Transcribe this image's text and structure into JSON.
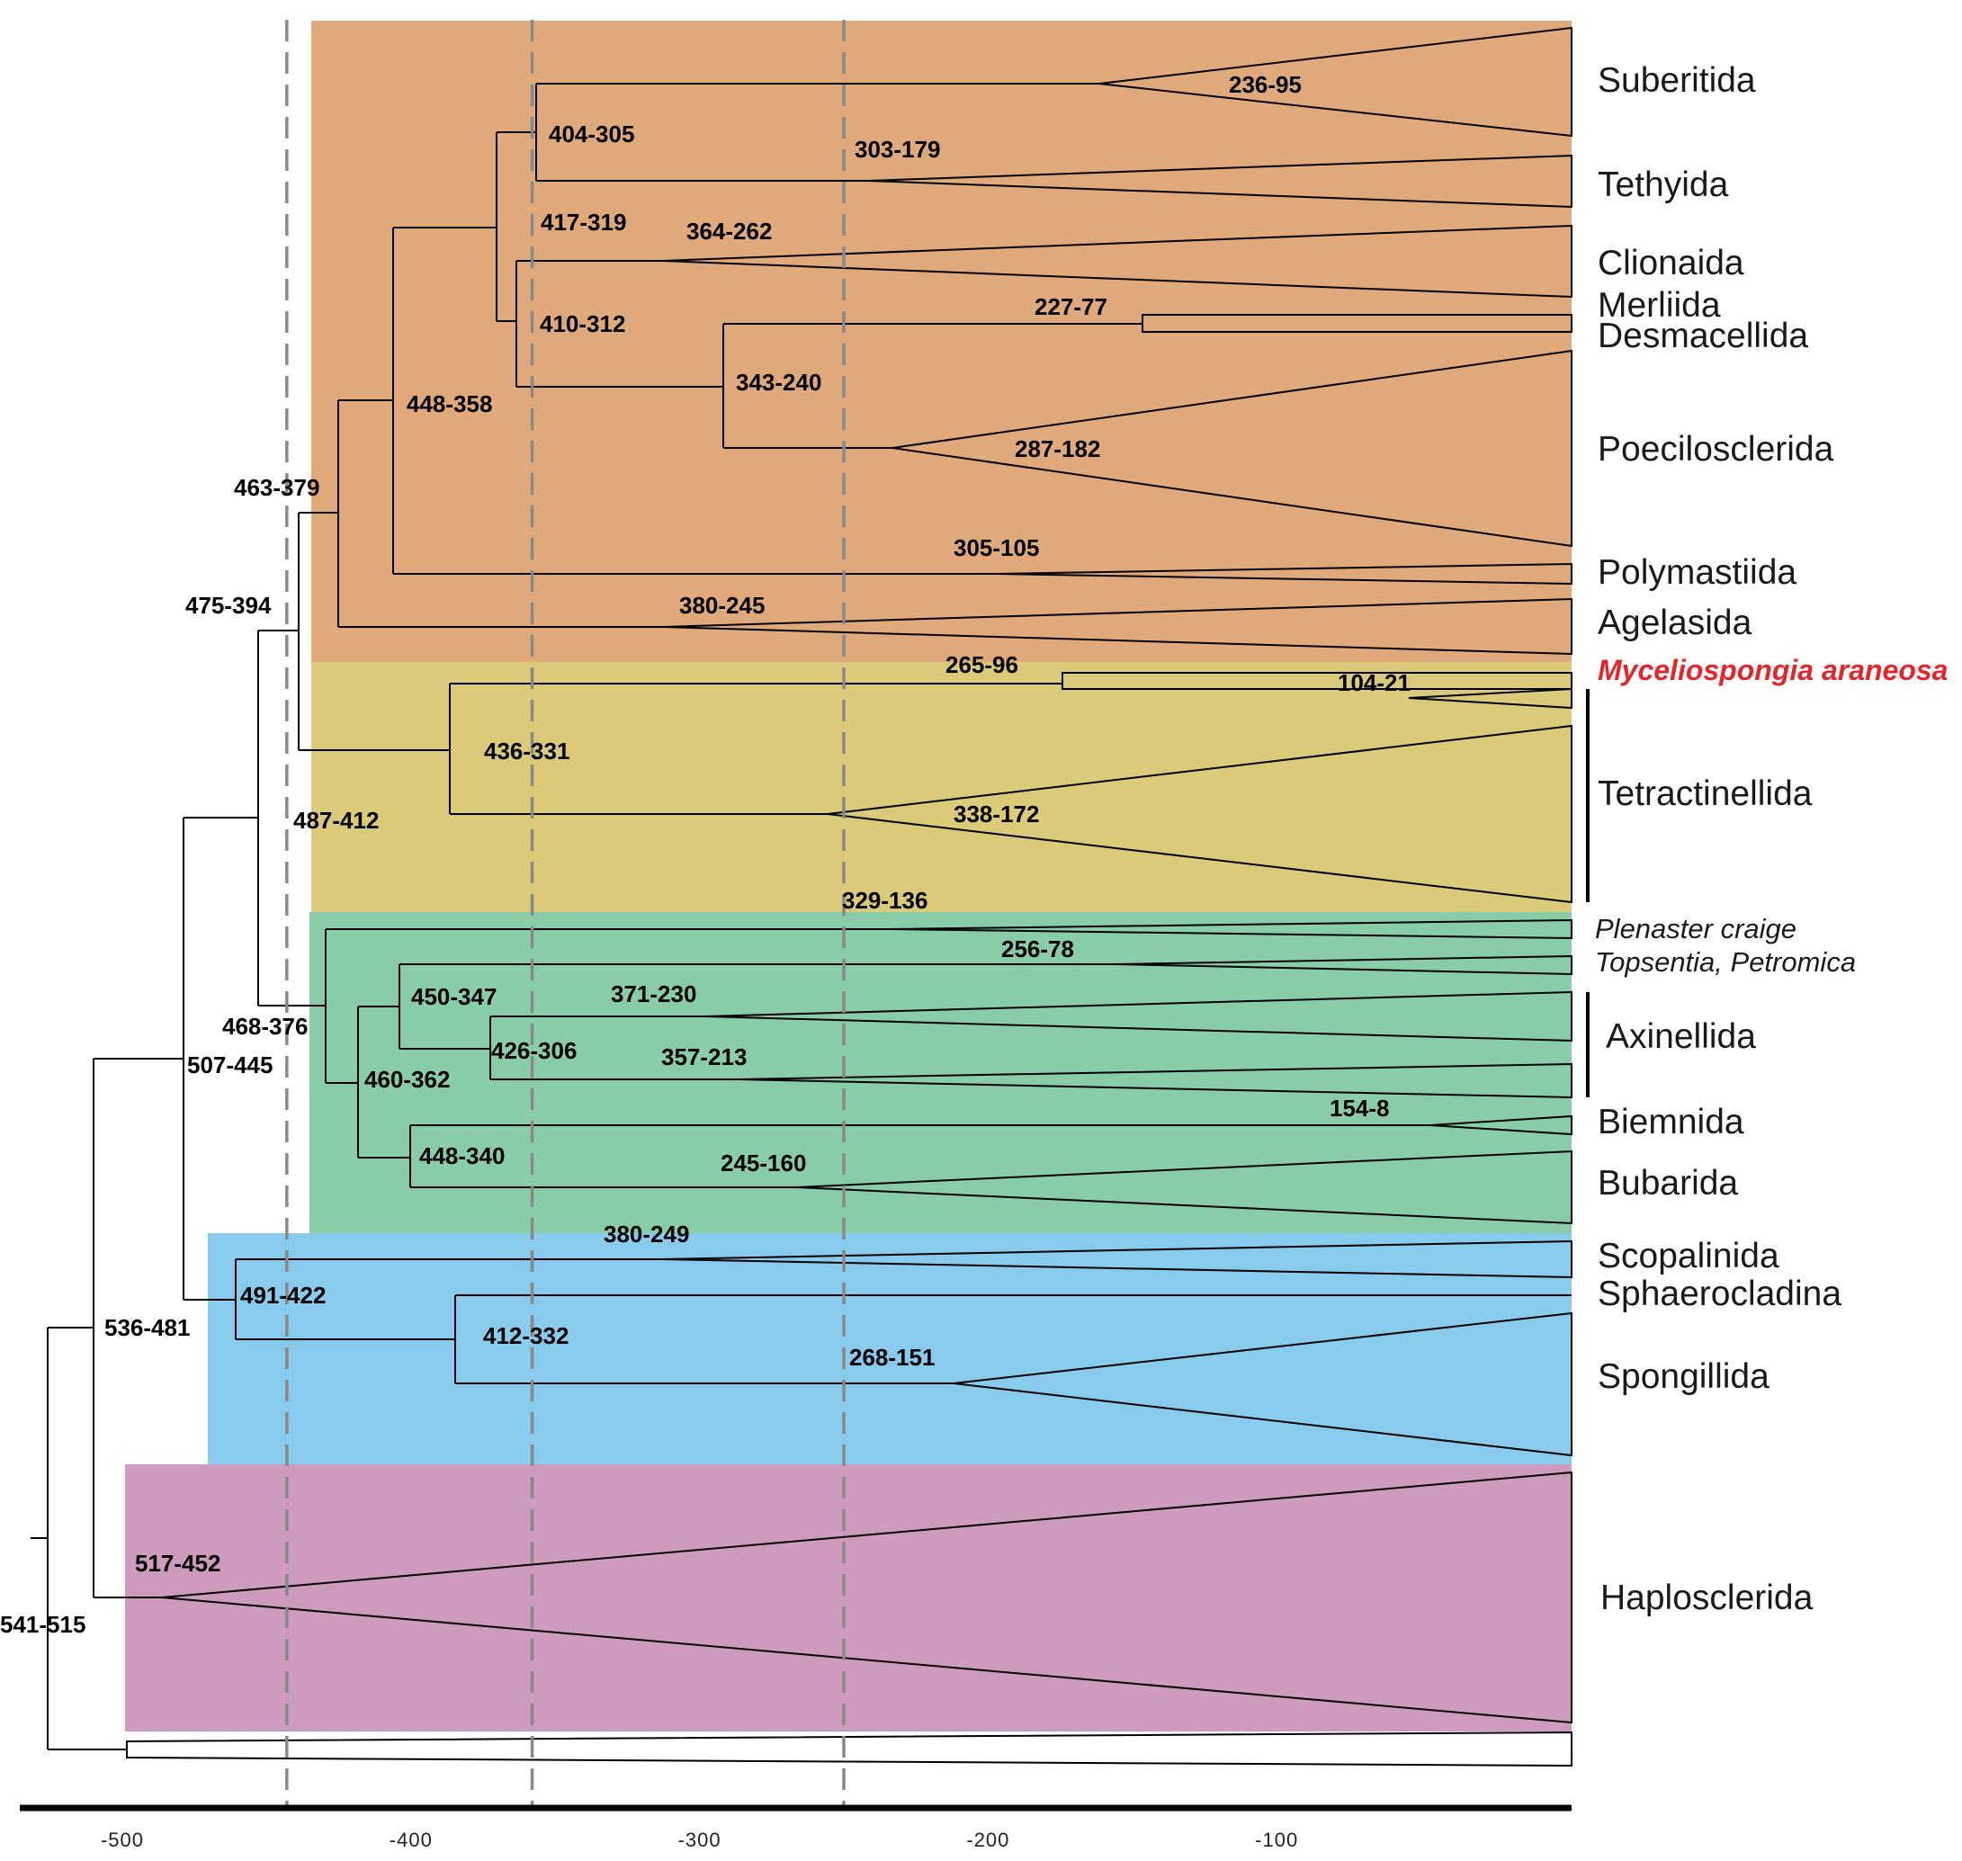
{
  "colors": {
    "band_orange": "#dfa97b",
    "band_yellow": "#dbca7a",
    "band_green": "#88cca8",
    "band_blue": "#88cbec",
    "band_pink": "#ce9abd",
    "highlight_red": "#e3262b",
    "reference_line": "#888888"
  },
  "taxa": {
    "suberitida": "Suberitida",
    "tethyida": "Tethyida",
    "clionaida": "Clionaida",
    "merliida": "Merliida",
    "desmacellida": "Desmacellida",
    "poecilosclerida": "Poecilosclerida",
    "polymastiida": "Polymastiida",
    "agelasida": "Agelasida",
    "myceliospongia": "Myceliospongia araneosa",
    "tetractinellida": "Tetractinellida",
    "plenaster": "Plenaster craige",
    "topsentia": "Topsentia, Petromica",
    "axinellida": "Axinellida",
    "biemnida": "Biemnida",
    "bubarida": "Bubarida",
    "scopalinida": "Scopalinida",
    "sphaerocladina": "Sphaerocladina",
    "spongillida": "Spongillida",
    "haplosclerida": "Haplosclerida"
  },
  "node_ages": {
    "n236_95": "236-95",
    "n404_305": "404-305",
    "n303_179": "303-179",
    "n417_319": "417-319",
    "n364_262": "364-262",
    "n227_77": "227-77",
    "n410_312": "410-312",
    "n343_240": "343-240",
    "n448_358": "448-358",
    "n287_182": "287-182",
    "n463_379": "463-379",
    "n305_105": "305-105",
    "n475_394": "475-394",
    "n380_245": "380-245",
    "n265_96": "265-96",
    "n104_21": "104-21",
    "n436_331": "436-331",
    "n487_412": "487-412",
    "n338_172": "338-172",
    "n329_136": "329-136",
    "n256_78": "256-78",
    "n450_347": "450-347",
    "n371_230": "371-230",
    "n468_376": "468-376",
    "n426_306": "426-306",
    "n357_213": "357-213",
    "n507_445": "507-445",
    "n460_362": "460-362",
    "n154_8": "154-8",
    "n448_340": "448-340",
    "n245_160": "245-160",
    "n380_249": "380-249",
    "n491_422": "491-422",
    "n536_481": "536-481",
    "n412_332": "412-332",
    "n268_151": "268-151",
    "n517_452": "517-452",
    "n541_515": "541-515"
  },
  "axis": {
    "ticks": [
      -500,
      -400,
      -300,
      -200,
      -100
    ],
    "tick_labels": [
      "-500",
      "-400",
      "-300",
      "-200",
      "-100"
    ],
    "dashed_lines": [
      -443,
      -358,
      -250
    ]
  }
}
